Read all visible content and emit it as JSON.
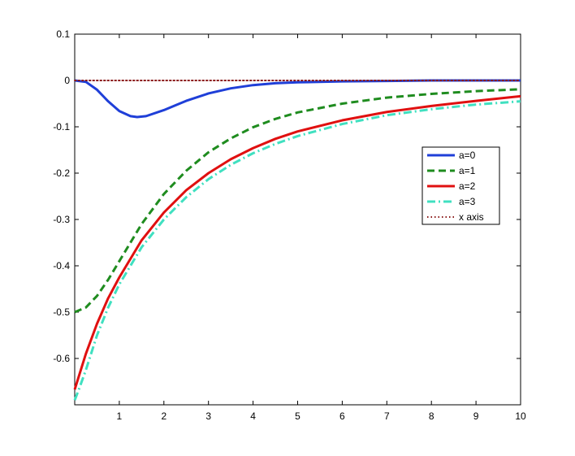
{
  "chart_data": {
    "type": "line",
    "title": "",
    "xlabel": "",
    "ylabel": "",
    "xlim": [
      0,
      10
    ],
    "ylim": [
      -0.7,
      0.1
    ],
    "grid": false,
    "legend_position": "right",
    "x_ticks": [
      1,
      2,
      3,
      4,
      5,
      6,
      7,
      8,
      9,
      10
    ],
    "x_tick_labels": [
      "1",
      "2",
      "3",
      "4",
      "5",
      "6",
      "7",
      "8",
      "9",
      "10"
    ],
    "y_ticks": [
      -0.6,
      -0.5,
      -0.4,
      -0.3,
      -0.2,
      -0.1,
      0,
      0.1
    ],
    "y_tick_labels": [
      "-0.6",
      "-0.5",
      "-0.4",
      "-0.3",
      "-0.2",
      "-0.1",
      "0",
      "0.1"
    ],
    "series": [
      {
        "name": "a=0",
        "color": "#1f3fd8",
        "style": "solid",
        "x": [
          0,
          0.25,
          0.5,
          0.75,
          1.0,
          1.25,
          1.4,
          1.6,
          2.0,
          2.5,
          3.0,
          3.5,
          4.0,
          4.5,
          5.0,
          6.0,
          7.0,
          8.0,
          9.0,
          10.0
        ],
        "y": [
          0,
          -0.003,
          -0.02,
          -0.045,
          -0.066,
          -0.077,
          -0.079,
          -0.077,
          -0.064,
          -0.044,
          -0.028,
          -0.017,
          -0.01,
          -0.006,
          -0.004,
          -0.002,
          -0.001,
          0,
          0,
          0
        ]
      },
      {
        "name": "a=1",
        "color": "#1f8c1f",
        "style": "dashed",
        "x": [
          0,
          0.25,
          0.5,
          0.75,
          1.0,
          1.5,
          2.0,
          2.5,
          3.0,
          3.5,
          4.0,
          4.5,
          5.0,
          6.0,
          7.0,
          8.0,
          9.0,
          10.0
        ],
        "y": [
          -0.5,
          -0.49,
          -0.465,
          -0.43,
          -0.39,
          -0.31,
          -0.245,
          -0.195,
          -0.155,
          -0.125,
          -0.101,
          -0.083,
          -0.069,
          -0.05,
          -0.037,
          -0.029,
          -0.023,
          -0.019
        ]
      },
      {
        "name": "a=2",
        "color": "#e01010",
        "style": "solid",
        "x": [
          0,
          0.25,
          0.5,
          0.75,
          1.0,
          1.5,
          2.0,
          2.5,
          3.0,
          3.5,
          4.0,
          4.5,
          5.0,
          6.0,
          7.0,
          8.0,
          9.0,
          10.0
        ],
        "y": [
          -0.667,
          -0.59,
          -0.525,
          -0.47,
          -0.425,
          -0.345,
          -0.285,
          -0.237,
          -0.2,
          -0.17,
          -0.146,
          -0.126,
          -0.11,
          -0.086,
          -0.068,
          -0.055,
          -0.044,
          -0.034
        ]
      },
      {
        "name": "a=3",
        "color": "#40e0c0",
        "style": "dashdot",
        "x": [
          0,
          0.1,
          0.25,
          0.5,
          0.75,
          1.0,
          1.5,
          2.0,
          2.5,
          3.0,
          3.5,
          4.0,
          4.5,
          5.0,
          6.0,
          7.0,
          8.0,
          9.0,
          10.0
        ],
        "y": [
          -0.69,
          -0.665,
          -0.625,
          -0.55,
          -0.49,
          -0.44,
          -0.36,
          -0.3,
          -0.252,
          -0.213,
          -0.182,
          -0.157,
          -0.137,
          -0.12,
          -0.094,
          -0.075,
          -0.062,
          -0.052,
          -0.045
        ]
      },
      {
        "name": "x axis",
        "color": "#8b1a1a",
        "style": "dotted",
        "x": [
          0,
          10
        ],
        "y": [
          0,
          0
        ]
      }
    ]
  }
}
